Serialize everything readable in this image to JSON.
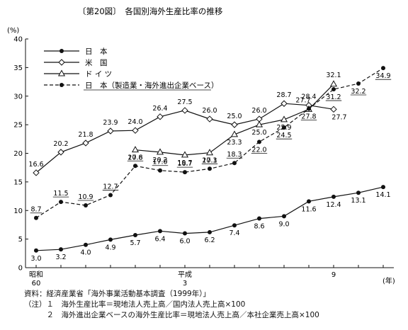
{
  "chart_data": {
    "type": "line",
    "title": "〔第20図〕　各国別海外生産比率の推移",
    "y_unit": "(%)",
    "x_unit": "(年)",
    "ylim": [
      0,
      40
    ],
    "y_ticks": [
      "0",
      "5",
      "10",
      "15",
      "20",
      "25",
      "30",
      "35",
      "40"
    ],
    "x": [
      1985,
      1986,
      1987,
      1988,
      1989,
      1990,
      1991,
      1992,
      1993,
      1994,
      1995,
      1996,
      1997,
      1998,
      1999
    ],
    "x_tick_labels": [
      {
        "x": 1985,
        "label": "昭和",
        "label2": "60"
      },
      {
        "x": 1991,
        "label": "平成",
        "label2": "3"
      },
      {
        "x": 1997,
        "label": "9",
        "label2": ""
      }
    ],
    "legend_position": "top-left",
    "series": [
      {
        "name": "日　本",
        "marker": "filled-circle",
        "dashed": false,
        "values": [
          3.0,
          3.2,
          4.0,
          4.9,
          5.7,
          6.4,
          6.0,
          6.2,
          7.4,
          8.6,
          9.0,
          11.6,
          12.4,
          13.1,
          14.1
        ],
        "labels": [
          "3.0",
          "3.2",
          "4.0",
          "4.9",
          "5.7",
          "6.4",
          "6.0",
          "6.2",
          "7.4",
          "8.6",
          "9.0",
          "11.6",
          "12.4",
          "13.1",
          "14.1"
        ]
      },
      {
        "name": "米　国",
        "marker": "open-diamond",
        "dashed": false,
        "values": [
          16.6,
          20.2,
          21.8,
          23.9,
          24.0,
          26.4,
          27.5,
          26.0,
          25.0,
          26.0,
          28.7,
          28.4,
          27.7,
          null,
          null
        ],
        "labels": [
          "16.6",
          "20.2",
          "21.8",
          "23.9",
          "24.0",
          "26.4",
          "27.5",
          "26.0",
          "25.0",
          "26.0",
          "28.7",
          "28.4",
          "27.7",
          "",
          ""
        ]
      },
      {
        "name": "ド イ ツ",
        "marker": "open-triangle",
        "dashed": false,
        "values": [
          null,
          null,
          null,
          null,
          20.6,
          20.2,
          19.7,
          20.1,
          23.3,
          25.0,
          25.9,
          27.7,
          32.1,
          null,
          null
        ],
        "labels": [
          "",
          "",
          "",
          "",
          "20.6",
          "20.2",
          "19.7",
          "20.1",
          "23.3",
          "25.0",
          "25.9",
          "27.7",
          "32.1",
          "",
          ""
        ]
      },
      {
        "name": "日　本（製造業・海外進出企業ベース）",
        "marker": "filled-circle",
        "dashed": true,
        "values": [
          8.7,
          11.5,
          10.9,
          12.7,
          17.8,
          17.0,
          16.7,
          17.3,
          18.3,
          22.0,
          24.5,
          27.8,
          31.2,
          32.2,
          34.9
        ],
        "labels": [
          "8.7",
          "11.5",
          "10.9",
          "12.7",
          "17.8",
          "17.0",
          "16.7",
          "17.3",
          "18.3",
          "22.0",
          "24.5",
          "27.8",
          "31.2",
          "32.2",
          "34.9"
        ]
      }
    ]
  },
  "notes": {
    "source": "資料：経済産業省「海外事業活動基本調査（1999年）」",
    "note1": "（注）１　海外生産比率＝現地法人売上高／国内法人売上高×100",
    "note2": "　　　２　海外進出企業ベースの海外生産比率＝現地法人売上高／本社企業売上高×100"
  }
}
